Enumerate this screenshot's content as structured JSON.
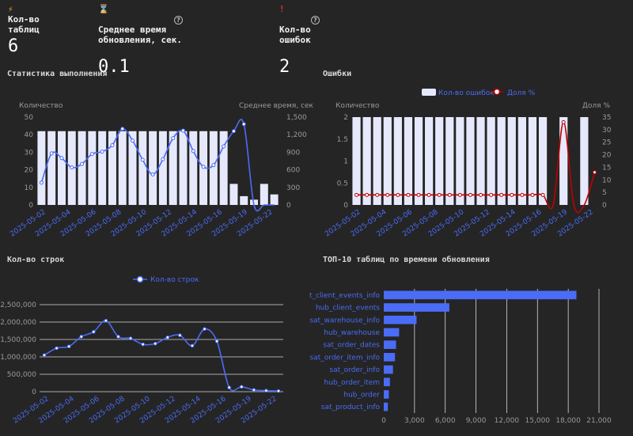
{
  "colors": {
    "bar_light": "#e6e9fb",
    "line_blue": "#4a6cf7",
    "line_red": "#c00000",
    "hbar": "#4a6cf7",
    "axis_text": "#9a9a9a",
    "tick_blue": "#4a6cf7",
    "grid": "#d8d8d8"
  },
  "kpis": [
    {
      "icon": "lightning-icon",
      "icon_char": "⚡",
      "label": "Кол-во\nтаблиц",
      "value": "6",
      "help": false
    },
    {
      "icon": "hourglass-icon",
      "icon_char": "⌛",
      "label": "Среднее время\nобновления, сек.",
      "value": "0.1",
      "help": true
    },
    {
      "icon": "exclamation-icon",
      "icon_char": "!",
      "label": "Кол-во\nошибок",
      "value": "2",
      "help": true
    }
  ],
  "sections": {
    "stats": "Статистика выполнения",
    "errors": "Ошибки",
    "rows": "Кол-во строк",
    "top10": "ТОП-10 таблиц по времени обновления"
  },
  "chart_data": [
    {
      "type": "bar+line",
      "title": "Статистика выполнения",
      "ylabel": "Количество",
      "y2label": "Среднее время, сек",
      "ylim": [
        0,
        50
      ],
      "y2lim": [
        0,
        1500
      ],
      "yticks": [
        0,
        10,
        20,
        30,
        40,
        50
      ],
      "y2ticks": [
        "0",
        "300",
        "600",
        "900",
        "1,200",
        "1,500"
      ],
      "x_tick_labels": [
        "2025-05-02",
        "2025-05-04",
        "2025-05-06",
        "2025-05-08",
        "2025-05-10",
        "2025-05-12",
        "2025-05-14",
        "2025-05-16",
        "2025-05-19",
        "2025-05-22"
      ],
      "bars": [
        42,
        42,
        42,
        42,
        42,
        42,
        42,
        42,
        42,
        42,
        42,
        42,
        42,
        42,
        42,
        42,
        42,
        42,
        42,
        12,
        5,
        3,
        12,
        6
      ],
      "line": [
        380,
        880,
        800,
        640,
        700,
        870,
        910,
        1020,
        1300,
        1100,
        770,
        520,
        780,
        1140,
        1270,
        920,
        650,
        680,
        1000,
        1260,
        1380,
        0,
        0,
        0
      ]
    },
    {
      "type": "bar+line",
      "title": "Ошибки",
      "legend": [
        "Кол-во ошибок",
        "Доля %"
      ],
      "ylabel": "Количество",
      "y2label": "Доля %",
      "ylim": [
        0,
        2
      ],
      "y2lim": [
        0,
        35
      ],
      "yticks": [
        "0",
        "0.5",
        "1",
        "1.5",
        "2"
      ],
      "y2ticks": [
        "0",
        "5",
        "10",
        "15",
        "20",
        "25",
        "30",
        "35"
      ],
      "x_tick_labels": [
        "2025-05-02",
        "2025-05-04",
        "2025-05-06",
        "2025-05-08",
        "2025-05-10",
        "2025-05-12",
        "2025-05-14",
        "2025-05-16",
        "2025-05-19",
        "2025-05-22"
      ],
      "bars": [
        2,
        2,
        2,
        2,
        2,
        2,
        2,
        2,
        2,
        2,
        2,
        2,
        2,
        2,
        2,
        2,
        2,
        2,
        2,
        0,
        2,
        0,
        2,
        0
      ],
      "line": [
        4,
        4,
        4,
        4,
        4,
        4,
        4,
        4,
        4,
        4,
        4,
        4,
        4,
        4,
        4,
        4,
        4,
        4,
        4,
        0,
        33,
        0,
        0,
        13
      ]
    },
    {
      "type": "line",
      "title": "Кол-во строк",
      "legend": [
        "Кол-во строк"
      ],
      "ylim": [
        0,
        2500000
      ],
      "yticks": [
        "0",
        "500,000",
        "1,000,000",
        "1,500,000",
        "2,000,000",
        "2,500,000"
      ],
      "x_tick_labels": [
        "2025-05-02",
        "2025-05-04",
        "2025-05-06",
        "2025-05-08",
        "2025-05-10",
        "2025-05-12",
        "2025-05-14",
        "2025-05-16",
        "2025-05-19",
        "2025-05-22"
      ],
      "line": [
        1050000,
        1250000,
        1300000,
        1580000,
        1720000,
        2040000,
        1580000,
        1530000,
        1360000,
        1380000,
        1560000,
        1620000,
        1320000,
        1800000,
        1450000,
        120000,
        140000,
        50000,
        30000,
        20000
      ]
    },
    {
      "type": "hbar",
      "title": "ТОП-10 таблиц по времени обновления",
      "categories": [
        "t_client_events_info",
        "hub_client_events",
        "sat_warehouse_info",
        "hub_warehouse",
        "sat_order_dates",
        "sat_order_item_info",
        "sat_order_info",
        "hub_order_item",
        "hub_order",
        "sat_product_info"
      ],
      "values": [
        18800,
        6400,
        3200,
        1500,
        1200,
        1100,
        900,
        600,
        500,
        400
      ],
      "xlim": [
        0,
        21000
      ],
      "xticks": [
        "0",
        "3,000",
        "6,000",
        "9,000",
        "12,000",
        "15,000",
        "18,000",
        "21,000"
      ]
    }
  ]
}
